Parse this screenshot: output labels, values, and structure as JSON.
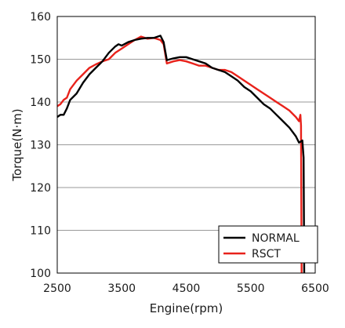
{
  "chart_data": {
    "type": "line",
    "title": "",
    "xlabel": "Engine(rpm)",
    "ylabel": "Torque(N·m)",
    "xlim": [
      2500,
      6500
    ],
    "ylim": [
      100,
      160
    ],
    "x_ticks": [
      "2500",
      "3500",
      "4500",
      "5500",
      "6500"
    ],
    "y_ticks": [
      "100",
      "110",
      "120",
      "130",
      "140",
      "150",
      "160"
    ],
    "grid": "horizontal",
    "legend_position": "bottom-right",
    "series": [
      {
        "name": "NORMAL",
        "color": "#000000",
        "points": [
          [
            2500,
            136.5
          ],
          [
            2550,
            137.0
          ],
          [
            2600,
            137.0
          ],
          [
            2650,
            138.5
          ],
          [
            2700,
            140.5
          ],
          [
            2800,
            142.0
          ],
          [
            2900,
            144.5
          ],
          [
            3000,
            146.5
          ],
          [
            3100,
            148.0
          ],
          [
            3200,
            149.5
          ],
          [
            3300,
            151.5
          ],
          [
            3400,
            153.0
          ],
          [
            3450,
            153.5
          ],
          [
            3500,
            153.2
          ],
          [
            3600,
            154.0
          ],
          [
            3700,
            154.5
          ],
          [
            3800,
            154.8
          ],
          [
            3900,
            155.0
          ],
          [
            4000,
            155.0
          ],
          [
            4100,
            155.5
          ],
          [
            4150,
            154.0
          ],
          [
            4200,
            149.8
          ],
          [
            4300,
            150.2
          ],
          [
            4400,
            150.5
          ],
          [
            4500,
            150.5
          ],
          [
            4600,
            150.0
          ],
          [
            4700,
            149.5
          ],
          [
            4800,
            149.0
          ],
          [
            4900,
            148.0
          ],
          [
            5000,
            147.5
          ],
          [
            5100,
            147.0
          ],
          [
            5200,
            146.0
          ],
          [
            5300,
            145.0
          ],
          [
            5400,
            143.5
          ],
          [
            5500,
            142.5
          ],
          [
            5600,
            141.0
          ],
          [
            5700,
            139.5
          ],
          [
            5800,
            138.5
          ],
          [
            5900,
            137.0
          ],
          [
            6000,
            135.5
          ],
          [
            6100,
            134.0
          ],
          [
            6200,
            132.0
          ],
          [
            6250,
            130.5
          ],
          [
            6300,
            131.0
          ],
          [
            6320,
            127.0
          ],
          [
            6330,
            100.0
          ]
        ]
      },
      {
        "name": "RSCT",
        "color": "#e8221b",
        "points": [
          [
            2500,
            139.0
          ],
          [
            2550,
            139.5
          ],
          [
            2600,
            140.5
          ],
          [
            2650,
            141.0
          ],
          [
            2700,
            143.0
          ],
          [
            2800,
            145.0
          ],
          [
            2900,
            146.5
          ],
          [
            3000,
            148.0
          ],
          [
            3100,
            148.8
          ],
          [
            3200,
            149.5
          ],
          [
            3300,
            150.0
          ],
          [
            3400,
            151.5
          ],
          [
            3500,
            152.5
          ],
          [
            3600,
            153.5
          ],
          [
            3700,
            154.5
          ],
          [
            3800,
            155.3
          ],
          [
            3900,
            154.8
          ],
          [
            4000,
            155.0
          ],
          [
            4100,
            154.5
          ],
          [
            4150,
            153.5
          ],
          [
            4200,
            149.0
          ],
          [
            4300,
            149.5
          ],
          [
            4400,
            149.8
          ],
          [
            4500,
            149.5
          ],
          [
            4600,
            149.0
          ],
          [
            4700,
            148.5
          ],
          [
            4800,
            148.5
          ],
          [
            4900,
            148.0
          ],
          [
            5000,
            147.5
          ],
          [
            5100,
            147.5
          ],
          [
            5200,
            147.0
          ],
          [
            5300,
            146.0
          ],
          [
            5400,
            145.0
          ],
          [
            5500,
            144.0
          ],
          [
            5600,
            143.0
          ],
          [
            5700,
            142.0
          ],
          [
            5800,
            141.0
          ],
          [
            5900,
            140.0
          ],
          [
            6000,
            139.0
          ],
          [
            6100,
            138.0
          ],
          [
            6200,
            136.5
          ],
          [
            6250,
            135.5
          ],
          [
            6270,
            137.0
          ],
          [
            6280,
            134.5
          ],
          [
            6290,
            100.0
          ]
        ]
      }
    ]
  }
}
